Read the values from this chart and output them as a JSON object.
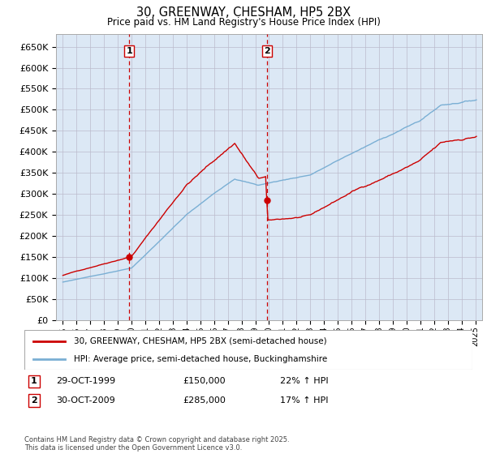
{
  "title": "30, GREENWAY, CHESHAM, HP5 2BX",
  "subtitle": "Price paid vs. HM Land Registry's House Price Index (HPI)",
  "legend_line1": "30, GREENWAY, CHESHAM, HP5 2BX (semi-detached house)",
  "legend_line2": "HPI: Average price, semi-detached house, Buckinghamshire",
  "footnote": "Contains HM Land Registry data © Crown copyright and database right 2025.\nThis data is licensed under the Open Government Licence v3.0.",
  "sale1_date": "29-OCT-1999",
  "sale1_price": "£150,000",
  "sale1_hpi": "22% ↑ HPI",
  "sale2_date": "30-OCT-2009",
  "sale2_price": "£285,000",
  "sale2_hpi": "17% ↑ HPI",
  "line_color_red": "#cc0000",
  "line_color_blue": "#7aafd4",
  "vline_color": "#cc0000",
  "grid_color": "#bbbbcc",
  "plot_bg": "#dce8f5",
  "sale1_x": 1999.83,
  "sale2_x": 2009.83,
  "sale1_y": 150000,
  "sale2_y": 285000,
  "ylim_min": 0,
  "ylim_max": 680000,
  "xlim_min": 1994.5,
  "xlim_max": 2025.5,
  "yticks": [
    0,
    50000,
    100000,
    150000,
    200000,
    250000,
    300000,
    350000,
    400000,
    450000,
    500000,
    550000,
    600000,
    650000
  ],
  "xtick_years": [
    1995,
    1996,
    1997,
    1998,
    1999,
    2000,
    2001,
    2002,
    2003,
    2004,
    2005,
    2006,
    2007,
    2008,
    2009,
    2010,
    2011,
    2012,
    2013,
    2014,
    2015,
    2016,
    2017,
    2018,
    2019,
    2020,
    2021,
    2022,
    2023,
    2024,
    2025
  ]
}
